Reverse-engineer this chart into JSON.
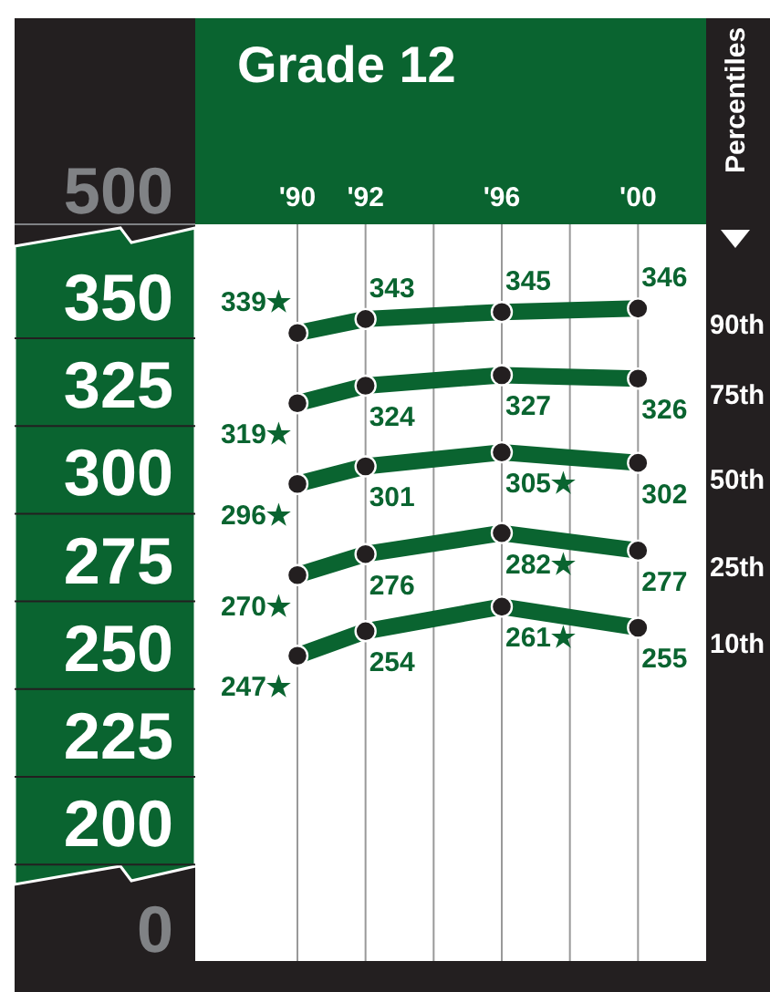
{
  "chart_data": {
    "type": "line",
    "title": "Grade 12",
    "legend_title": "Percentiles",
    "legend": "right",
    "grid": "x",
    "marker": "circle",
    "line_style": "solid",
    "x": [
      1990,
      1992,
      1996,
      2000
    ],
    "xlim": [
      1987,
      2002
    ],
    "xticks": [
      {
        "value": 1990,
        "label": "'90"
      },
      {
        "value": 1992,
        "label": "'92"
      },
      {
        "value": 1994,
        "label": null
      },
      {
        "value": 1996,
        "label": "'96"
      },
      {
        "value": 1998,
        "label": null
      },
      {
        "value": 2000,
        "label": "'00"
      }
    ],
    "ylim": [
      160,
      370
    ],
    "yticks": [
      200,
      225,
      250,
      275,
      300,
      325,
      350
    ],
    "annotations": [
      "500",
      "0"
    ],
    "series": [
      {
        "name": "90th",
        "color": "#0a6430",
        "values": [
          339,
          343,
          345,
          346
        ],
        "value_labels": [
          "339★",
          "343",
          "345",
          "346"
        ]
      },
      {
        "name": "75th",
        "color": "#0a6430",
        "values": [
          319,
          324,
          327,
          326
        ],
        "value_labels": [
          "319★",
          "324",
          "327",
          "326"
        ]
      },
      {
        "name": "50th",
        "color": "#0a6430",
        "values": [
          296,
          301,
          305,
          302
        ],
        "value_labels": [
          "296★",
          "301",
          "305★",
          "302"
        ]
      },
      {
        "name": "25th",
        "color": "#0a6430",
        "values": [
          270,
          276,
          282,
          277
        ],
        "value_labels": [
          "270★",
          "276",
          "282★",
          "277"
        ]
      },
      {
        "name": "10th",
        "color": "#0a6430",
        "values": [
          247,
          254,
          261,
          255
        ],
        "value_labels": [
          "247★",
          "254",
          "261★",
          "255"
        ]
      }
    ]
  }
}
